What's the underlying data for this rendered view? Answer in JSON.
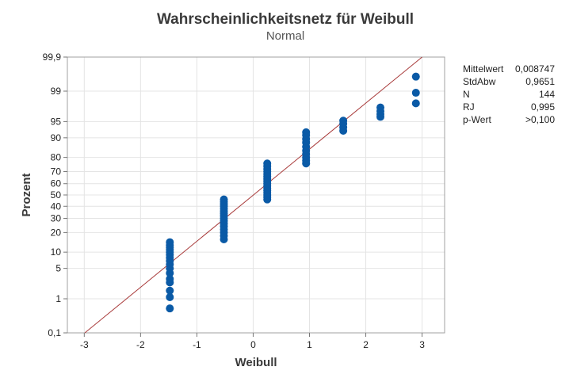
{
  "chart_data": {
    "type": "scatter",
    "title": "Wahrscheinlichkeitsnetz für Weibull",
    "subtitle": "Normal",
    "xlabel": "Weibull",
    "ylabel": "Prozent",
    "xlim": [
      -3.3,
      3.4
    ],
    "ylim_percent": [
      0.1,
      99.9
    ],
    "y_scale": "normal-probability",
    "x_ticks": [
      "-3",
      "-2",
      "-1",
      "0",
      "1",
      "2",
      "3"
    ],
    "y_ticks": [
      "0,1",
      "1",
      "5",
      "10",
      "20",
      "30",
      "40",
      "50",
      "60",
      "70",
      "80",
      "90",
      "95",
      "99",
      "99,9"
    ],
    "grid": true,
    "fit_line": {
      "color": "#a83a3a",
      "from": [
        -2.99,
        0.1
      ],
      "to": [
        3.0,
        99.9
      ]
    },
    "marker_color": "#0a5aa6",
    "point_groups": [
      {
        "x": -1.48,
        "percent": [
          0.55,
          1.1,
          1.6,
          2.5,
          3,
          4,
          5,
          6,
          7,
          8,
          9,
          10,
          11,
          12,
          13,
          14.5
        ]
      },
      {
        "x": -0.52,
        "percent": [
          16,
          18,
          20,
          22,
          24,
          26,
          28,
          30,
          32,
          34,
          36,
          38,
          40,
          42,
          44,
          46
        ]
      },
      {
        "x": 0.25,
        "percent": [
          46,
          48,
          50,
          52,
          54,
          56,
          58,
          60,
          62,
          64,
          66,
          68,
          70,
          72,
          74,
          76
        ]
      },
      {
        "x": 0.94,
        "percent": [
          76,
          78,
          80,
          82,
          84,
          86,
          88,
          89.5,
          91,
          92
        ]
      },
      {
        "x": 1.6,
        "percent": [
          92.5,
          93.5,
          94.5,
          95.2
        ]
      },
      {
        "x": 2.26,
        "percent": [
          96.0,
          96.5,
          97.0,
          97.5
        ]
      },
      {
        "x": 2.89,
        "percent": [
          98.0,
          98.9,
          99.6
        ]
      }
    ]
  },
  "stats": [
    {
      "label": "Mittelwert",
      "value": "0,008747"
    },
    {
      "label": "StdAbw",
      "value": "0,9651"
    },
    {
      "label": "N",
      "value": "144"
    },
    {
      "label": "RJ",
      "value": "0,995"
    },
    {
      "label": "p-Wert",
      "value": ">0,100"
    }
  ]
}
